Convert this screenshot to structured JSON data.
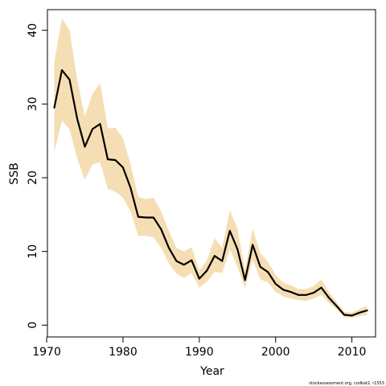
{
  "chart_data": {
    "type": "line",
    "title": "",
    "xlabel": "Year",
    "ylabel": "SSB",
    "xlim": [
      1970.1,
      2013.1
    ],
    "ylim": [
      -1.6,
      42.8
    ],
    "x_ticks": [
      1970,
      1980,
      1990,
      2000,
      2010
    ],
    "y_ticks": [
      0,
      10,
      20,
      30,
      40
    ],
    "grid": false,
    "legend": "none",
    "colors": {
      "line": "#000000",
      "band": "#F5DEB3",
      "axis": "#000000"
    },
    "x": [
      1971,
      1972,
      1973,
      1974,
      1975,
      1976,
      1977,
      1978,
      1979,
      1980,
      1981,
      1982,
      1983,
      1984,
      1985,
      1986,
      1987,
      1988,
      1989,
      1990,
      1991,
      1992,
      1993,
      1994,
      1995,
      1996,
      1997,
      1998,
      1999,
      2000,
      2001,
      2002,
      2003,
      2004,
      2005,
      2006,
      2007,
      2008,
      2009,
      2010,
      2011,
      2012
    ],
    "series": [
      {
        "values": [
          29.5,
          34.6,
          33.3,
          28.0,
          24.2,
          26.6,
          27.3,
          22.5,
          22.4,
          21.4,
          18.6,
          14.7,
          14.6,
          14.6,
          13.0,
          10.5,
          8.7,
          8.2,
          8.8,
          6.3,
          7.4,
          9.4,
          8.7,
          12.8,
          10.3,
          6.1,
          10.9,
          7.9,
          7.2,
          5.6,
          4.8,
          4.5,
          4.1,
          4.1,
          4.4,
          5.1,
          3.7,
          2.6,
          1.4,
          1.3,
          1.7,
          2.0
        ]
      }
    ],
    "band_upper": [
      35.7,
      41.6,
      40.0,
      33.3,
      28.3,
      31.4,
      32.8,
      26.7,
      26.8,
      25.4,
      21.8,
      17.4,
      17.1,
      17.3,
      15.4,
      12.8,
      10.5,
      10.0,
      10.6,
      7.4,
      8.8,
      11.8,
      10.5,
      15.6,
      13.1,
      7.5,
      13.1,
      9.8,
      8.6,
      6.8,
      5.8,
      5.4,
      4.9,
      4.9,
      5.3,
      6.2,
      4.5,
      3.1,
      1.8,
      1.7,
      2.2,
      2.6
    ],
    "band_lower": [
      23.4,
      27.7,
      26.6,
      22.6,
      19.7,
      21.8,
      22.1,
      18.5,
      18.1,
      17.3,
      15.4,
      12.1,
      12.1,
      11.9,
      10.5,
      8.4,
      7.0,
      6.4,
      7.1,
      5.1,
      5.9,
      7.2,
      7.1,
      10.3,
      7.9,
      5.0,
      8.9,
      6.2,
      5.8,
      4.5,
      3.9,
      3.6,
      3.4,
      3.3,
      3.6,
      4.1,
      3.0,
      2.1,
      1.1,
      1.0,
      1.2,
      1.4
    ],
    "annotation": "stockassessment.org, codkat2, r1553"
  }
}
